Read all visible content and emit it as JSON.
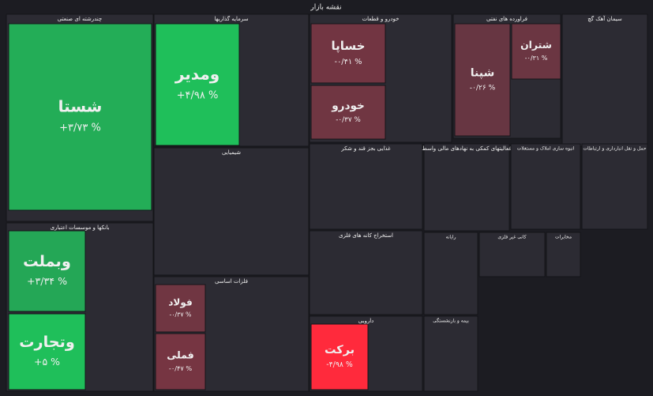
{
  "chart_data": {
    "type": "treemap",
    "title": "نقشه بازار",
    "sectors": [
      {
        "name": "چندرشته ای صنعتی",
        "tiles": [
          {
            "name": "شستا",
            "value": 3.73,
            "value_label": "+۳/۷۳ %"
          }
        ]
      },
      {
        "name": "بانکها و موسسات اعتباری",
        "tiles": [
          {
            "name": "وبملت",
            "value": 3.34,
            "value_label": "+۳/۳۴ %"
          },
          {
            "name": "وتجارت",
            "value": 5,
            "value_label": "+۵ %"
          }
        ]
      },
      {
        "name": "سرمایه گذاریها",
        "tiles": [
          {
            "name": "ومدیر",
            "value": 4.98,
            "value_label": "+۴/۹۸ %"
          }
        ]
      },
      {
        "name": "شیمیایی",
        "tiles": []
      },
      {
        "name": "فلزات اساسی",
        "tiles": [
          {
            "name": "فولاد",
            "value": -0.37,
            "value_label": "-۰/۳۷ %"
          },
          {
            "name": "فملی",
            "value": -0.47,
            "value_label": "-۰/۴۷ %"
          }
        ]
      },
      {
        "name": "خودرو و قطعات",
        "tiles": [
          {
            "name": "خساپا",
            "value": -0.41,
            "value_label": "-۰/۴۱ %"
          },
          {
            "name": "خودرو",
            "value": -0.37,
            "value_label": "-۰/۳۷ %"
          }
        ]
      },
      {
        "name": "فراورده های نفتی",
        "tiles": [
          {
            "name": "شپنا",
            "value": -0.26,
            "value_label": "-۰/۲۶ %"
          },
          {
            "name": "شتران",
            "value": -0.31,
            "value_label": "-۰/۳۱ %"
          }
        ]
      },
      {
        "name": "سیمان آهک گچ",
        "tiles": []
      },
      {
        "name": "غذایی بجز قند و شکر",
        "tiles": []
      },
      {
        "name": "فعالیتهای کمکی به نهادهای مالی واسط",
        "tiles": []
      },
      {
        "name": "انبوه سازی املاک و مستغلات",
        "tiles": []
      },
      {
        "name": "حمل و نقل انبارداری و ارتباطات",
        "tiles": []
      },
      {
        "name": "استخراج کانه های فلزی",
        "tiles": []
      },
      {
        "name": "دارویی",
        "tiles": [
          {
            "name": "برکت",
            "value": -4.98,
            "value_label": "-۴/۹۸ %"
          }
        ]
      },
      {
        "name": "رایانه",
        "tiles": []
      },
      {
        "name": "کانی غیر فلزی",
        "tiles": []
      },
      {
        "name": "مخابرات",
        "tiles": []
      },
      {
        "name": "بیمه و بازنشستگی",
        "tiles": []
      }
    ]
  }
}
